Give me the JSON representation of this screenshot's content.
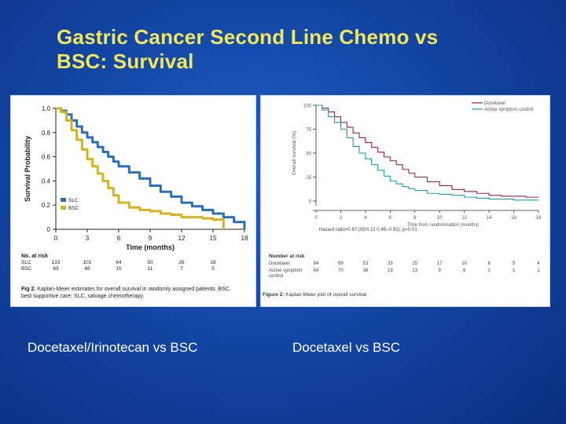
{
  "slide": {
    "title_line1": "Gastric Cancer Second Line Chemo vs",
    "title_line2": "BSC: Survival",
    "caption_left": "Docetaxel/Irinotecan vs BSC",
    "caption_right": "Docetaxel vs BSC",
    "colors": {
      "title": "#f2e85a",
      "background": "#1346a6"
    }
  },
  "chart_data": [
    {
      "type": "line",
      "ylabel": "Survival Probability",
      "xlabel": "Time (months)",
      "xlim": [
        0,
        18
      ],
      "ylim": [
        0,
        1.0
      ],
      "xticks": [
        "0",
        "3",
        "6",
        "9",
        "12",
        "15",
        "18"
      ],
      "yticks": [
        "0",
        "0.2",
        "0.4",
        "0.6",
        "0.8",
        "1.0"
      ],
      "legend": [
        "SLC",
        "BSC"
      ],
      "series": [
        {
          "name": "SLC",
          "color": "#2a6fb4",
          "x": [
            0,
            0.5,
            1,
            1.5,
            2,
            2.5,
            3,
            3.5,
            4,
            4.5,
            5,
            5.5,
            6,
            7,
            8,
            9,
            10,
            11,
            12,
            13,
            14,
            15,
            16,
            17,
            18
          ],
          "y": [
            1.0,
            0.98,
            0.95,
            0.9,
            0.85,
            0.8,
            0.76,
            0.72,
            0.68,
            0.64,
            0.6,
            0.56,
            0.52,
            0.47,
            0.42,
            0.36,
            0.31,
            0.27,
            0.22,
            0.19,
            0.16,
            0.13,
            0.1,
            0.06,
            0.0
          ]
        },
        {
          "name": "BSC",
          "color": "#d4b41c",
          "x": [
            0,
            0.5,
            1,
            1.5,
            2,
            2.5,
            3,
            3.5,
            4,
            4.5,
            5,
            5.5,
            6,
            7,
            8,
            9,
            10,
            11,
            12,
            13,
            14,
            15,
            16
          ],
          "y": [
            1.0,
            0.97,
            0.9,
            0.82,
            0.74,
            0.66,
            0.58,
            0.52,
            0.46,
            0.4,
            0.34,
            0.28,
            0.22,
            0.18,
            0.16,
            0.15,
            0.13,
            0.12,
            0.1,
            0.1,
            0.09,
            0.08,
            0.0
          ]
        }
      ],
      "risk_table": {
        "header": "No. at risk",
        "rows": [
          {
            "label": "SLC",
            "values": [
              "133",
              "101",
              "64",
              "50",
              "26",
              "18"
            ]
          },
          {
            "label": "BSC",
            "values": [
              "69",
              "48",
              "15",
              "11",
              "7",
              "5"
            ]
          }
        ],
        "times": [
          0,
          3,
          6,
          9,
          12,
          15
        ]
      },
      "caption_bold": "Fig 2.",
      "caption": "Kaplan-Meier estimates for overall survival in randomly assigned patients. BSC, best supportive care; SLC, salvage chemotherapy."
    },
    {
      "type": "line",
      "ylabel": "Overall survival (%)",
      "xlabel": "Time from randomisation (months)",
      "xlim": [
        0,
        18
      ],
      "ylim": [
        0,
        100
      ],
      "xticks": [
        "0",
        "2",
        "4",
        "6",
        "8",
        "10",
        "12",
        "14",
        "16",
        "18"
      ],
      "yticks": [
        "0",
        "25",
        "50",
        "75",
        "100"
      ],
      "legend": [
        "Docetaxel",
        "Active symptom control"
      ],
      "annotation": "Hazard ratio=0·67 (95% CI 0·49–0·92); p=0·01",
      "series": [
        {
          "name": "Docetaxel",
          "color": "#9a1f4e",
          "x": [
            0,
            0.5,
            1,
            1.5,
            2,
            2.5,
            3,
            3.5,
            4,
            4.5,
            5,
            5.5,
            6,
            6.5,
            7,
            7.5,
            8,
            9,
            10,
            11,
            12,
            13,
            14,
            15,
            16,
            17,
            18
          ],
          "y": [
            100,
            97,
            93,
            88,
            82,
            77,
            71,
            66,
            61,
            56,
            51,
            46,
            42,
            38,
            33,
            29,
            25,
            20,
            16,
            12,
            10,
            8,
            6,
            5,
            5,
            4,
            4
          ]
        },
        {
          "name": "Active symptom control",
          "color": "#1aa0a6",
          "x": [
            0,
            0.5,
            1,
            1.5,
            2,
            2.5,
            3,
            3.5,
            4,
            4.5,
            5,
            5.5,
            6,
            6.5,
            7,
            7.5,
            8,
            9,
            10,
            11,
            12,
            13,
            14,
            15,
            16,
            17,
            18
          ],
          "y": [
            100,
            95,
            88,
            82,
            75,
            66,
            57,
            50,
            44,
            38,
            32,
            26,
            21,
            18,
            15,
            13,
            11,
            8,
            7,
            6,
            4,
            3,
            2,
            2,
            1,
            1,
            1
          ]
        }
      ],
      "risk_table": {
        "header": "Number at risk",
        "rows": [
          {
            "label": "Docetaxel",
            "values": [
              "84",
              "69",
              "53",
              "33",
              "25",
              "17",
              "10",
              "8",
              "5",
              "4"
            ]
          },
          {
            "label": "Active symptom control",
            "values": [
              "84",
              "70",
              "38",
              "19",
              "13",
              "9",
              "6",
              "2",
              "1",
              "1"
            ]
          }
        ],
        "times": [
          0,
          2,
          4,
          6,
          8,
          10,
          12,
          14,
          16,
          18
        ]
      },
      "caption_bold": "Figure 2:",
      "caption": "Kaplan-Meier plot of overall survival"
    }
  ]
}
